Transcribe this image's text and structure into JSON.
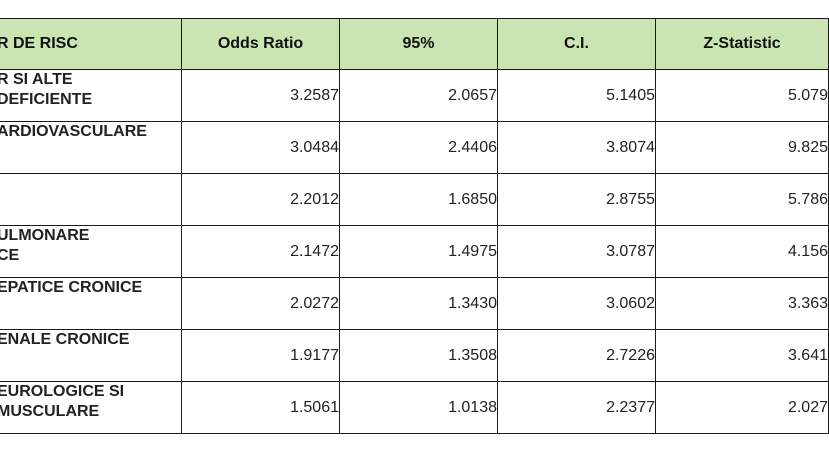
{
  "table": {
    "headers": {
      "risk": "R DE RISC",
      "odds_ratio": "Odds Ratio",
      "ci_low": "95%",
      "ci_high": "C.I.",
      "z_statistic": "Z-Statistic"
    },
    "rows": [
      {
        "risk": "R SI ALTE\nDEFICIENTE",
        "odds_ratio": "3.2587",
        "ci_low": "2.0657",
        "ci_high": "5.1405",
        "z_statistic": "5.079"
      },
      {
        "risk": "ARDIOVASCULARE",
        "odds_ratio": "3.0484",
        "ci_low": "2.4406",
        "ci_high": "3.8074",
        "z_statistic": "9.825"
      },
      {
        "risk": "",
        "odds_ratio": "2.2012",
        "ci_low": "1.6850",
        "ci_high": "2.8755",
        "z_statistic": "5.786"
      },
      {
        "risk": "ULMONARE\nCE",
        "odds_ratio": "2.1472",
        "ci_low": "1.4975",
        "ci_high": "3.0787",
        "z_statistic": "4.156"
      },
      {
        "risk": "EPATICE CRONICE",
        "odds_ratio": "2.0272",
        "ci_low": "1.3430",
        "ci_high": "3.0602",
        "z_statistic": "3.363"
      },
      {
        "risk": "ENALE CRONICE",
        "odds_ratio": "1.9177",
        "ci_low": "1.3508",
        "ci_high": "2.7226",
        "z_statistic": "3.641"
      },
      {
        "risk": "EUROLOGICE SI\nMUSCULARE",
        "odds_ratio": "1.5061",
        "ci_low": "1.0138",
        "ci_high": "2.2377",
        "z_statistic": "2.027"
      }
    ]
  },
  "colors": {
    "header_background": "#cbe5b2",
    "border": "#1a1a1a"
  }
}
